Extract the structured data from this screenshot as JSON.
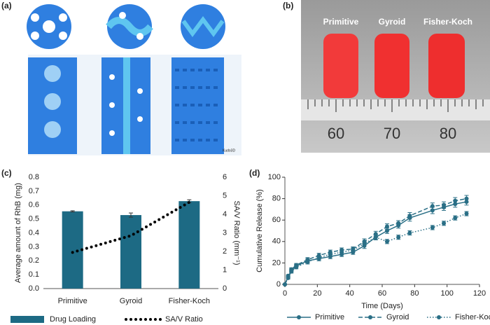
{
  "panel_labels": [
    "(a)",
    "(b)",
    "(c)",
    "(d)"
  ],
  "render_watermark": "Kudo3D",
  "photo": {
    "labels": [
      "Primitive",
      "Gyroid",
      "Fisher-Koch"
    ],
    "ruler_labels": [
      "60",
      "70",
      "80"
    ]
  },
  "chart_data": [
    {
      "type": "bar",
      "y_label": "Average amount of RhB (mg)",
      "y2_label": "SA/V Ratio (mm⁻¹)",
      "categories": [
        "Primitive",
        "Gyroid",
        "Fisher-Koch"
      ],
      "series": [
        {
          "name": "Drug Loading",
          "color": "#1d6a84",
          "values": [
            0.555,
            0.528,
            0.628
          ],
          "errors": [
            0.004,
            0.015,
            0.01
          ]
        },
        {
          "name": "SA/V Ratio",
          "color": "#000000",
          "values": [
            1.95,
            2.85,
            4.65
          ],
          "axis": "y2",
          "style": "dotted"
        }
      ],
      "ylim": [
        0,
        0.8
      ],
      "yticks": [
        {
          "value": 0,
          "label": "0.0"
        },
        0.1,
        0.2,
        0.3,
        0.4,
        0.5,
        0.6,
        0.7,
        0.8
      ],
      "y2lim": [
        0,
        6
      ],
      "y2ticks": [
        0,
        1,
        2,
        3,
        4,
        5,
        6
      ],
      "grid": false,
      "legend": "bottom"
    },
    {
      "type": "line",
      "x_label": "Time (Days)",
      "y_label": "Cumulative Release (%)",
      "x": [
        0,
        2,
        4,
        7,
        14,
        21,
        28,
        35,
        42,
        49,
        56,
        63,
        70,
        77,
        91,
        98,
        105,
        112
      ],
      "series": [
        {
          "name": "Primitive",
          "color": "#2a6f86",
          "style": "solid",
          "values": [
            0,
            7,
            13,
            17,
            22,
            24,
            26,
            28,
            30,
            36,
            44,
            50,
            55,
            62,
            69,
            72,
            75,
            77
          ],
          "errors": [
            0,
            1,
            1.5,
            1.5,
            2,
            2,
            2,
            2,
            2,
            2.5,
            2.5,
            2.5,
            2.5,
            3,
            3,
            3,
            3,
            3
          ]
        },
        {
          "name": "Gyroid",
          "color": "#2a6f86",
          "style": "dashed",
          "values": [
            0,
            8,
            14,
            18,
            23,
            27,
            30,
            32,
            33,
            40,
            47,
            54,
            57,
            64,
            73,
            74,
            78,
            80
          ],
          "errors": [
            0,
            1,
            1.5,
            1.5,
            2,
            2,
            2,
            2,
            2,
            2.5,
            2.5,
            2.5,
            2.5,
            3,
            3,
            3,
            3,
            3
          ]
        },
        {
          "name": "Fisher-Koch",
          "color": "#2a6f86",
          "style": "dotted",
          "values": [
            0,
            6,
            12,
            16,
            21,
            25,
            28,
            30,
            32,
            38,
            44,
            40,
            44,
            48,
            53,
            57,
            62,
            66
          ],
          "errors": [
            0,
            1,
            1.5,
            1.5,
            2,
            2,
            2,
            2,
            2,
            2,
            2,
            2,
            2,
            2,
            2,
            2,
            2,
            2
          ]
        }
      ],
      "xlim": [
        0,
        120
      ],
      "xticks": [
        0,
        20,
        40,
        60,
        80,
        100,
        120
      ],
      "ylim": [
        0,
        100
      ],
      "yticks": [
        0,
        20,
        40,
        60,
        80,
        100
      ],
      "grid": false,
      "legend": "bottom"
    }
  ]
}
